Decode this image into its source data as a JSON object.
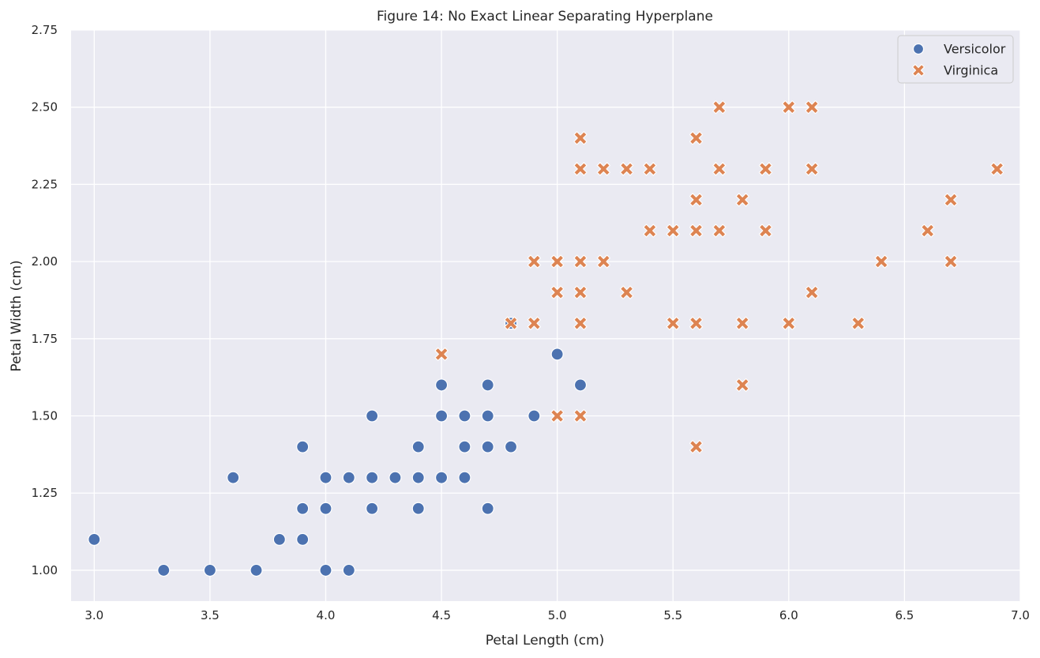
{
  "chart_data": {
    "type": "scatter",
    "title": "Figure 14: No Exact Linear Separating Hyperplane",
    "xlabel": "Petal Length (cm)",
    "ylabel": "Petal Width (cm)",
    "xlim": [
      2.9,
      7.0
    ],
    "ylim": [
      0.9,
      2.75
    ],
    "x_ticks": [
      "3.0",
      "3.5",
      "4.0",
      "4.5",
      "5.0",
      "5.5",
      "6.0",
      "6.5",
      "7.0"
    ],
    "y_ticks": [
      "1.00",
      "1.25",
      "1.50",
      "1.75",
      "2.00",
      "2.25",
      "2.50",
      "2.75"
    ],
    "grid": true,
    "legend_position": "top-right",
    "series": [
      {
        "name": "Versicolor",
        "marker": "circle",
        "color": "#4c72b0",
        "points": [
          [
            3.0,
            1.1
          ],
          [
            3.3,
            1.0
          ],
          [
            3.5,
            1.0
          ],
          [
            3.6,
            1.3
          ],
          [
            3.7,
            1.0
          ],
          [
            3.8,
            1.1
          ],
          [
            3.9,
            1.4
          ],
          [
            3.9,
            1.2
          ],
          [
            3.9,
            1.1
          ],
          [
            4.0,
            1.3
          ],
          [
            4.0,
            1.2
          ],
          [
            4.0,
            1.0
          ],
          [
            4.1,
            1.3
          ],
          [
            4.1,
            1.0
          ],
          [
            4.2,
            1.5
          ],
          [
            4.2,
            1.3
          ],
          [
            4.2,
            1.2
          ],
          [
            4.3,
            1.3
          ],
          [
            4.4,
            1.4
          ],
          [
            4.4,
            1.3
          ],
          [
            4.4,
            1.2
          ],
          [
            4.5,
            1.6
          ],
          [
            4.5,
            1.5
          ],
          [
            4.5,
            1.3
          ],
          [
            4.6,
            1.5
          ],
          [
            4.6,
            1.4
          ],
          [
            4.6,
            1.3
          ],
          [
            4.7,
            1.6
          ],
          [
            4.7,
            1.5
          ],
          [
            4.7,
            1.4
          ],
          [
            4.7,
            1.2
          ],
          [
            4.8,
            1.8
          ],
          [
            4.8,
            1.4
          ],
          [
            4.9,
            1.5
          ],
          [
            5.0,
            1.7
          ],
          [
            5.1,
            1.6
          ]
        ]
      },
      {
        "name": "Virginica",
        "marker": "x",
        "color": "#dd8452",
        "points": [
          [
            4.5,
            1.7
          ],
          [
            4.8,
            1.8
          ],
          [
            4.9,
            2.0
          ],
          [
            4.9,
            1.8
          ],
          [
            5.0,
            2.0
          ],
          [
            5.0,
            1.9
          ],
          [
            5.0,
            1.5
          ],
          [
            5.1,
            2.4
          ],
          [
            5.1,
            2.3
          ],
          [
            5.1,
            2.0
          ],
          [
            5.1,
            1.9
          ],
          [
            5.1,
            1.8
          ],
          [
            5.1,
            1.5
          ],
          [
            5.2,
            2.3
          ],
          [
            5.2,
            2.0
          ],
          [
            5.3,
            2.3
          ],
          [
            5.3,
            1.9
          ],
          [
            5.4,
            2.3
          ],
          [
            5.4,
            2.1
          ],
          [
            5.5,
            2.1
          ],
          [
            5.5,
            1.8
          ],
          [
            5.6,
            2.4
          ],
          [
            5.6,
            2.2
          ],
          [
            5.6,
            2.1
          ],
          [
            5.6,
            1.8
          ],
          [
            5.6,
            1.4
          ],
          [
            5.7,
            2.5
          ],
          [
            5.7,
            2.3
          ],
          [
            5.7,
            2.1
          ],
          [
            5.8,
            2.2
          ],
          [
            5.8,
            1.8
          ],
          [
            5.8,
            1.6
          ],
          [
            5.9,
            2.3
          ],
          [
            5.9,
            2.1
          ],
          [
            6.0,
            2.5
          ],
          [
            6.0,
            1.8
          ],
          [
            6.1,
            2.5
          ],
          [
            6.1,
            2.3
          ],
          [
            6.1,
            1.9
          ],
          [
            6.3,
            1.8
          ],
          [
            6.4,
            2.0
          ],
          [
            6.6,
            2.1
          ],
          [
            6.7,
            2.2
          ],
          [
            6.7,
            2.0
          ],
          [
            6.9,
            2.3
          ]
        ]
      }
    ]
  }
}
